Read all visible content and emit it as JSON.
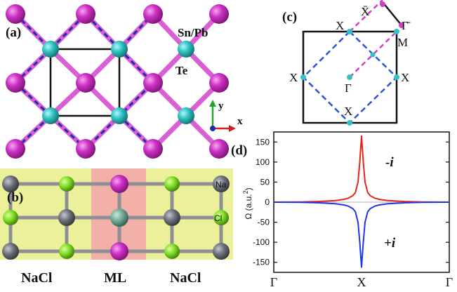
{
  "panel_a": {
    "label": "(a)",
    "element_top": "Sn/Pb",
    "element_bottom": "Te",
    "axis_y": "y",
    "axis_x": "x"
  },
  "panel_b": {
    "label": "(b)",
    "na": "Na",
    "cl": "Cl",
    "left": "NaCl",
    "middle": "ML",
    "right": "NaCl"
  },
  "panel_c": {
    "label": "(c)",
    "x_label": "X",
    "m_label": "M",
    "gamma_label": "Γ",
    "xbar_label": "X̄",
    "gammabar_label": "Γ̄"
  },
  "panel_d": {
    "label": "(d)",
    "ylabel_main": "Ω (a.u.",
    "ylabel_sup": "2",
    "ylabel_end": ")",
    "minus_i": "-i",
    "plus_i": "+i"
  },
  "colors": {
    "sn_pb": "#cc2fc4",
    "te": "#2fc4c4",
    "na": "#6b6e76",
    "cl": "#7ddc22",
    "curve_minus": "#e8231f",
    "curve_plus": "#1f35e8",
    "bz_dashed": "#2a56d6",
    "path_magenta": "#d23cc8",
    "yellow_bg": "#ecf09a",
    "pink_bg": "#f3b0a8"
  },
  "chart_data": {
    "type": "line",
    "title": "",
    "xlabel": "",
    "ylabel": "Ω (a.u.²)",
    "x_ticks": [
      "Γ",
      "X",
      "Γ"
    ],
    "y_ticks": [
      150,
      100,
      50,
      0,
      -50,
      -100,
      -150
    ],
    "ylim": [
      -175,
      175
    ],
    "xlim": [
      0,
      2
    ],
    "series": [
      {
        "name": "-i",
        "x": [
          0,
          0.3,
          0.5,
          0.7,
          0.8,
          0.85,
          0.9,
          0.93,
          0.96,
          0.98,
          1.0,
          1.02,
          1.04,
          1.07,
          1.1,
          1.15,
          1.2,
          1.3,
          1.5,
          1.7,
          2.0
        ],
        "y": [
          0,
          0.5,
          1.5,
          4,
          7,
          10,
          16,
          24,
          50,
          100,
          165,
          100,
          50,
          24,
          16,
          10,
          7,
          4,
          1.5,
          0.5,
          0
        ]
      },
      {
        "name": "+i",
        "x": [
          0,
          0.3,
          0.5,
          0.7,
          0.8,
          0.85,
          0.9,
          0.93,
          0.96,
          0.98,
          1.0,
          1.02,
          1.04,
          1.07,
          1.1,
          1.15,
          1.2,
          1.3,
          1.5,
          1.7,
          2.0
        ],
        "y": [
          0,
          -0.5,
          -1.5,
          -4,
          -7,
          -10,
          -16,
          -24,
          -50,
          -100,
          -162,
          -100,
          -50,
          -24,
          -16,
          -10,
          -7,
          -4,
          -1.5,
          -0.5,
          0
        ]
      }
    ]
  }
}
